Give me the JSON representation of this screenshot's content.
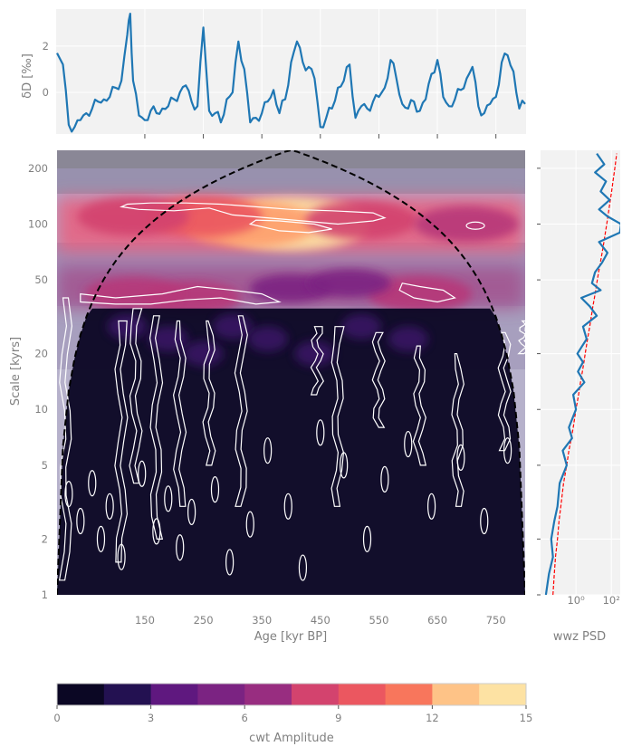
{
  "chart_data": [
    {
      "type": "line",
      "panel": "timeseries",
      "ylabel": "δD [‰]",
      "ylim": [
        -1.8,
        3.6
      ],
      "xlim": [
        0,
        800
      ],
      "yticks": [
        "0",
        "2"
      ],
      "yticks_values": [
        0,
        2
      ],
      "series_color": "#1f77b4",
      "grid": true,
      "x": [
        0,
        10,
        20,
        30,
        40,
        50,
        60,
        70,
        80,
        90,
        100,
        110,
        120,
        125,
        130,
        140,
        150,
        160,
        170,
        180,
        190,
        200,
        210,
        220,
        230,
        240,
        250,
        260,
        270,
        280,
        290,
        300,
        310,
        320,
        330,
        340,
        350,
        360,
        370,
        380,
        390,
        400,
        410,
        420,
        430,
        440,
        450,
        460,
        470,
        480,
        490,
        500,
        510,
        520,
        530,
        540,
        550,
        560,
        570,
        580,
        590,
        600,
        610,
        620,
        630,
        640,
        650,
        660,
        670,
        680,
        690,
        700,
        710,
        720,
        730,
        740,
        750,
        760,
        770,
        780,
        790,
        800
      ],
      "values": [
        1.7,
        1.2,
        -1.4,
        -1.5,
        -1.2,
        -0.9,
        -0.7,
        -0.4,
        -0.3,
        -0.2,
        0.2,
        0.5,
        2.5,
        3.4,
        0.5,
        -1.0,
        -1.2,
        -0.8,
        -0.9,
        -0.7,
        -0.6,
        -0.3,
        0.0,
        0.3,
        -0.4,
        -0.6,
        2.8,
        -0.8,
        -0.9,
        -1.3,
        -0.3,
        0.0,
        2.2,
        1.0,
        -1.3,
        -1.1,
        -0.9,
        -0.4,
        0.1,
        -0.9,
        -0.3,
        1.3,
        2.2,
        1.3,
        1.1,
        0.6,
        -1.5,
        -1.1,
        -0.7,
        0.2,
        0.5,
        1.2,
        -1.1,
        -0.6,
        -0.7,
        -0.4,
        -0.2,
        0.2,
        1.4,
        0.6,
        -0.5,
        -0.7,
        -0.4,
        -0.8,
        -0.3,
        0.8,
        1.4,
        -0.2,
        -0.6,
        -0.3,
        0.1,
        0.6,
        1.1,
        -0.6,
        -0.9,
        -0.5,
        -0.2,
        1.3,
        1.6,
        0.9,
        -0.7,
        -0.5
      ]
    },
    {
      "type": "heatmap",
      "panel": "scalogram",
      "xlabel": "Age [kyr BP]",
      "ylabel": "Scale [kyrs]",
      "xlim": [
        0,
        800
      ],
      "xticks": [
        "150",
        "250",
        "350",
        "450",
        "550",
        "650",
        "750"
      ],
      "xticks_values": [
        150,
        250,
        350,
        450,
        550,
        650,
        750
      ],
      "ylim": [
        1,
        250
      ],
      "y_scale": "log",
      "yticks": [
        "1",
        "2",
        "5",
        "10",
        "20",
        "50",
        "100",
        "200"
      ],
      "yticks_values": [
        1,
        2,
        5,
        10,
        20,
        50,
        100,
        200
      ],
      "cone_of_influence": true,
      "significance_contours": true,
      "features": [
        {
          "x": 400,
          "scale": 100,
          "amplitude": 15
        },
        {
          "x": 330,
          "scale": 100,
          "amplitude": 12
        },
        {
          "x": 250,
          "scale": 110,
          "amplitude": 10
        },
        {
          "x": 130,
          "scale": 110,
          "amplitude": 9
        },
        {
          "x": 520,
          "scale": 105,
          "amplitude": 9
        },
        {
          "x": 700,
          "scale": 100,
          "amplitude": 8
        },
        {
          "x": 620,
          "scale": 42,
          "amplitude": 8
        },
        {
          "x": 230,
          "scale": 40,
          "amplitude": 7
        },
        {
          "x": 130,
          "scale": 42,
          "amplitude": 7
        },
        {
          "x": 400,
          "scale": 45,
          "amplitude": 5
        },
        {
          "x": 500,
          "scale": 48,
          "amplitude": 5
        }
      ]
    },
    {
      "type": "line",
      "panel": "psd",
      "xlabel": "wwz PSD",
      "x_scale": "log",
      "xticks": [
        "10⁰",
        "10²"
      ],
      "series_color": "#1f77b4",
      "reference_color": "#ff0000",
      "scale": [
        1,
        1.3,
        1.6,
        2,
        2.5,
        3,
        4,
        5,
        6,
        7,
        8,
        10,
        12,
        14,
        16,
        18,
        20,
        24,
        28,
        32,
        36,
        40,
        44,
        48,
        55,
        62,
        70,
        80,
        90,
        100,
        110,
        120,
        135,
        150,
        170,
        190,
        210,
        240
      ],
      "psd": [
        0.02,
        0.03,
        0.05,
        0.04,
        0.06,
        0.09,
        0.12,
        0.3,
        0.18,
        0.6,
        0.4,
        1.0,
        0.7,
        3.0,
        1.3,
        2.5,
        1.2,
        4.0,
        2.5,
        15.0,
        6.0,
        2.0,
        25.0,
        8.0,
        12.0,
        30.0,
        60.0,
        20.0,
        300.0,
        350.0,
        60.0,
        20.0,
        80.0,
        25.0,
        50.0,
        12.0,
        40.0,
        15.0
      ],
      "reference": [
        0.05,
        0.06,
        0.07,
        0.09,
        0.11,
        0.14,
        0.2,
        0.3,
        0.4,
        0.55,
        0.7,
        1.0,
        1.4,
        1.8,
        2.3,
        2.8,
        3.3,
        4.5,
        6.0,
        7.5,
        9.0,
        11.0,
        13.0,
        15.0,
        19.0,
        24.0,
        30.0,
        38.0,
        46.0,
        55.0,
        64.0,
        73.0,
        88.0,
        103.0,
        123.0,
        145.0,
        168.0,
        200.0
      ]
    },
    {
      "type": "colorbar",
      "panel": "colorbar",
      "label": "cwt Amplitude",
      "range": [
        0,
        15
      ],
      "ticks": [
        "0",
        "3",
        "6",
        "9",
        "12",
        "15"
      ],
      "ticks_values": [
        0,
        3,
        6,
        9,
        12,
        15
      ],
      "levels": 10,
      "colors": [
        "#0b0724",
        "#231151",
        "#410f75",
        "#5f187f",
        "#7b2382",
        "#982d80",
        "#b73779",
        "#d3436e",
        "#eb5760",
        "#f8765c",
        "#fe9f6d",
        "#fec387",
        "#fde2a3"
      ]
    }
  ]
}
